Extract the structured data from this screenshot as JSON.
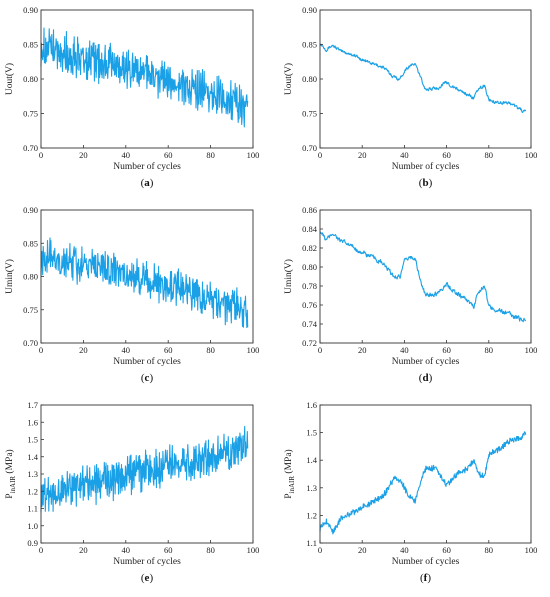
{
  "chart_data": [
    {
      "id": "a",
      "panel_label": "a",
      "type": "line",
      "xlabel": "Number of cycles",
      "ylabel": "Uout(V)",
      "xlim": [
        0,
        100
      ],
      "ylim": [
        0.7,
        0.9
      ],
      "xticks": [
        "0",
        "20",
        "40",
        "60",
        "80",
        "100"
      ],
      "yticks": [
        "0.70",
        "0.75",
        "0.80",
        "0.85",
        "0.90"
      ],
      "trend": {
        "x": [
          0,
          10,
          20,
          30,
          40,
          50,
          60,
          70,
          80,
          90,
          97
        ],
        "y": [
          0.845,
          0.838,
          0.83,
          0.823,
          0.815,
          0.806,
          0.797,
          0.788,
          0.778,
          0.768,
          0.76
        ]
      },
      "noise": 0.032,
      "color": "#1aa0e6"
    },
    {
      "id": "b",
      "panel_label": "b",
      "type": "line",
      "xlabel": "Number of cycles",
      "ylabel": "Uout(V)",
      "xlim": [
        0,
        100
      ],
      "ylim": [
        0.7,
        0.9
      ],
      "xticks": [
        "0",
        "20",
        "40",
        "60",
        "80",
        "100"
      ],
      "yticks": [
        "0.70",
        "0.75",
        "0.80",
        "0.85",
        "0.90"
      ],
      "trend": {
        "x": [
          0,
          3,
          6,
          10,
          15,
          20,
          25,
          30,
          33,
          35,
          38,
          40,
          42,
          45,
          48,
          50,
          55,
          60,
          65,
          70,
          73,
          75,
          78,
          80,
          85,
          90,
          95,
          97
        ],
        "y": [
          0.852,
          0.843,
          0.849,
          0.84,
          0.836,
          0.828,
          0.822,
          0.817,
          0.808,
          0.803,
          0.8,
          0.812,
          0.818,
          0.822,
          0.8,
          0.785,
          0.786,
          0.795,
          0.785,
          0.778,
          0.772,
          0.785,
          0.79,
          0.77,
          0.766,
          0.765,
          0.756,
          0.752
        ]
      },
      "noise": 0.004,
      "color": "#1aa0e6"
    },
    {
      "id": "c",
      "panel_label": "c",
      "type": "line",
      "xlabel": "Number of cycles",
      "ylabel": "Umin(V)",
      "xlim": [
        0,
        100
      ],
      "ylim": [
        0.7,
        0.9
      ],
      "xticks": [
        "0",
        "20",
        "40",
        "60",
        "80",
        "100"
      ],
      "yticks": [
        "0.70",
        "0.75",
        "0.80",
        "0.85",
        "0.90"
      ],
      "trend": {
        "x": [
          0,
          10,
          20,
          30,
          40,
          50,
          60,
          70,
          80,
          90,
          97
        ],
        "y": [
          0.832,
          0.825,
          0.818,
          0.81,
          0.802,
          0.793,
          0.785,
          0.776,
          0.765,
          0.755,
          0.745
        ]
      },
      "noise": 0.03,
      "color": "#1aa0e6"
    },
    {
      "id": "d",
      "panel_label": "d",
      "type": "line",
      "xlabel": "Number of cycles",
      "ylabel": "Umin(V)",
      "xlim": [
        0,
        100
      ],
      "ylim": [
        0.72,
        0.86
      ],
      "xticks": [
        "0",
        "20",
        "40",
        "60",
        "80",
        "100"
      ],
      "yticks": [
        "0.72",
        "0.74",
        "0.76",
        "0.78",
        "0.80",
        "0.82",
        "0.84",
        "0.86"
      ],
      "trend": {
        "x": [
          0,
          3,
          6,
          10,
          15,
          20,
          25,
          30,
          33,
          35,
          38,
          40,
          42,
          45,
          48,
          50,
          55,
          60,
          65,
          70,
          73,
          75,
          78,
          80,
          85,
          90,
          95,
          97
        ],
        "y": [
          0.838,
          0.828,
          0.836,
          0.827,
          0.822,
          0.815,
          0.81,
          0.803,
          0.795,
          0.79,
          0.79,
          0.805,
          0.81,
          0.81,
          0.782,
          0.77,
          0.772,
          0.782,
          0.772,
          0.765,
          0.758,
          0.775,
          0.78,
          0.758,
          0.754,
          0.75,
          0.745,
          0.745
        ]
      },
      "noise": 0.004,
      "color": "#1aa0e6"
    },
    {
      "id": "e",
      "panel_label": "e",
      "type": "line",
      "xlabel": "Number of cycles",
      "ylabel": "PinAIR (MPa)",
      "xlim": [
        0,
        100
      ],
      "ylim": [
        0.9,
        1.7
      ],
      "xticks": [
        "0",
        "20",
        "40",
        "60",
        "80",
        "100"
      ],
      "yticks": [
        "0.9",
        "1.0",
        "1.1",
        "1.2",
        "1.3",
        "1.4",
        "1.5",
        "1.6",
        "1.7"
      ],
      "trend": {
        "x": [
          0,
          10,
          20,
          30,
          40,
          50,
          60,
          70,
          80,
          90,
          97
        ],
        "y": [
          1.18,
          1.2,
          1.23,
          1.26,
          1.29,
          1.32,
          1.35,
          1.38,
          1.4,
          1.44,
          1.47
        ]
      },
      "noise": 0.12,
      "color": "#1aa0e6"
    },
    {
      "id": "f",
      "panel_label": "f",
      "type": "line",
      "xlabel": "Number of cycles",
      "ylabel": "PinAIR (MPa)",
      "xlim": [
        0,
        100
      ],
      "ylim": [
        1.1,
        1.6
      ],
      "xticks": [
        "0",
        "20",
        "40",
        "60",
        "80",
        "100"
      ],
      "yticks": [
        "1.1",
        "1.2",
        "1.3",
        "1.4",
        "1.5",
        "1.6"
      ],
      "trend": {
        "x": [
          0,
          3,
          6,
          10,
          15,
          20,
          25,
          30,
          33,
          35,
          38,
          40,
          42,
          45,
          48,
          50,
          55,
          60,
          65,
          70,
          73,
          75,
          78,
          80,
          85,
          90,
          95,
          97
        ],
        "y": [
          1.15,
          1.18,
          1.14,
          1.19,
          1.21,
          1.23,
          1.25,
          1.27,
          1.31,
          1.33,
          1.33,
          1.3,
          1.27,
          1.25,
          1.33,
          1.37,
          1.37,
          1.31,
          1.35,
          1.37,
          1.4,
          1.35,
          1.34,
          1.42,
          1.44,
          1.47,
          1.48,
          1.5
        ]
      },
      "noise": 0.012,
      "color": "#1aa0e6"
    }
  ]
}
